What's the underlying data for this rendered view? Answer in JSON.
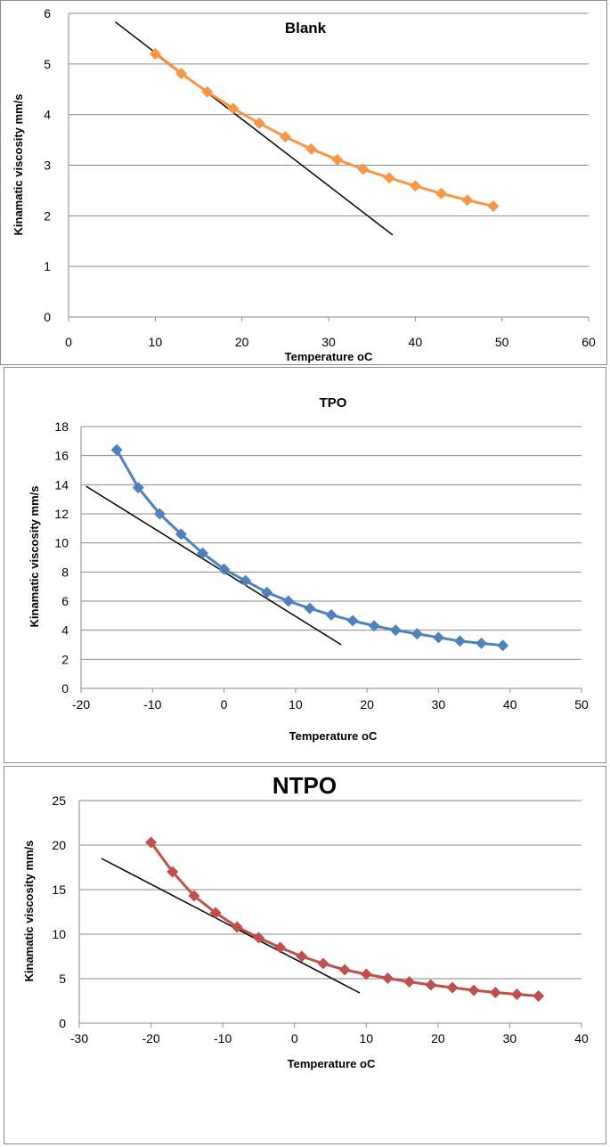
{
  "colors": {
    "grid": "#8a8a8a",
    "trend": "#000000"
  },
  "chart_data": [
    {
      "type": "line",
      "title": "Blank",
      "xlabel": "Temperature oC",
      "ylabel": "Kinamatic viscosity mm/s",
      "xlim": [
        0,
        60
      ],
      "ylim": [
        0,
        6
      ],
      "xticks": [
        0,
        10,
        20,
        30,
        40,
        50,
        60
      ],
      "yticks": [
        0,
        1,
        2,
        3,
        4,
        5,
        6
      ],
      "series": [
        {
          "name": "Blank",
          "color": "#f79646",
          "x": [
            10,
            13,
            16,
            19,
            22,
            25,
            28,
            31,
            34,
            37,
            40,
            43,
            46,
            49
          ],
          "y": [
            5.2,
            4.81,
            4.45,
            4.12,
            3.83,
            3.56,
            3.32,
            3.11,
            2.92,
            2.75,
            2.59,
            2.44,
            2.31,
            2.19
          ]
        }
      ],
      "trendline": {
        "x": [
          5.4,
          37.4
        ],
        "y": [
          5.83,
          1.62
        ]
      },
      "grid": true,
      "legend": "none"
    },
    {
      "type": "line",
      "title": "TPO",
      "xlabel": "Temperature oC",
      "ylabel": "Kinamatic viscosity mm/s",
      "xlim": [
        -20,
        50
      ],
      "ylim": [
        0,
        18
      ],
      "xticks": [
        -20,
        -10,
        0,
        10,
        20,
        30,
        40,
        50
      ],
      "yticks": [
        0,
        2,
        4,
        6,
        8,
        10,
        12,
        14,
        16,
        18
      ],
      "series": [
        {
          "name": "TPO",
          "color": "#4f81bd",
          "x": [
            -15,
            -12,
            -9,
            -6,
            -3,
            0,
            3,
            6,
            9,
            12,
            15,
            18,
            21,
            24,
            27,
            30,
            33,
            36,
            39
          ],
          "y": [
            16.4,
            13.8,
            12.0,
            10.6,
            9.3,
            8.2,
            7.4,
            6.6,
            6.0,
            5.5,
            5.05,
            4.65,
            4.3,
            4.0,
            3.75,
            3.5,
            3.25,
            3.1,
            2.95
          ]
        }
      ],
      "trendline": {
        "x": [
          -19.3,
          16.4
        ],
        "y": [
          13.9,
          3.0
        ]
      },
      "grid": true,
      "legend": "none"
    },
    {
      "type": "line",
      "title": "NTPO",
      "xlabel": "Temperature oC",
      "ylabel": "Kinamatic viscosity mm/s",
      "xlim": [
        -30,
        40
      ],
      "ylim": [
        0,
        25
      ],
      "xticks": [
        -30,
        -20,
        -10,
        0,
        10,
        20,
        30,
        40
      ],
      "yticks": [
        0,
        5,
        10,
        15,
        20,
        25
      ],
      "series": [
        {
          "name": "NTPO",
          "color": "#c0504d",
          "x": [
            -20,
            -17,
            -14,
            -11,
            -8,
            -5,
            -2,
            1,
            4,
            7,
            10,
            13,
            16,
            19,
            22,
            25,
            28,
            31,
            34
          ],
          "y": [
            20.3,
            17.0,
            14.3,
            12.4,
            10.8,
            9.6,
            8.5,
            7.5,
            6.7,
            6.0,
            5.5,
            5.05,
            4.65,
            4.3,
            4.0,
            3.7,
            3.45,
            3.25,
            3.05
          ]
        }
      ],
      "trendline": {
        "x": [
          -26.9,
          9.1
        ],
        "y": [
          18.5,
          3.4
        ]
      },
      "grid": true,
      "legend": "none"
    }
  ]
}
